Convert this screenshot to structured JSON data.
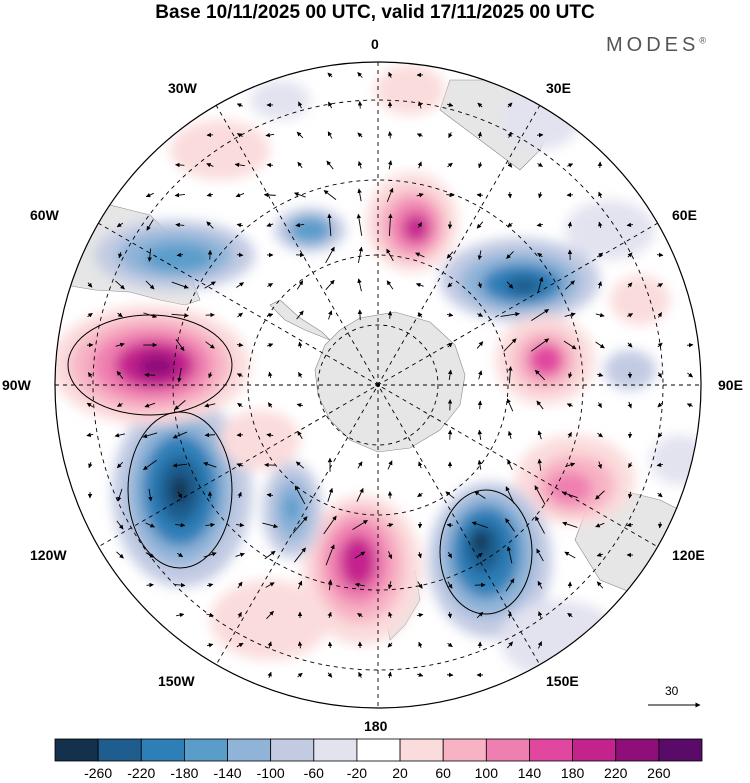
{
  "title": "Base 10/11/2025 00 UTC, valid 17/11/2025 00 UTC",
  "brand": "MODES",
  "brand_mark": "®",
  "longitude_labels": {
    "lon_0": "0",
    "lon_30e": "30E",
    "lon_60e": "60E",
    "lon_90e": "90E",
    "lon_120e": "120E",
    "lon_150e": "150E",
    "lon_180": "180",
    "lon_150w": "150W",
    "lon_120w": "120W",
    "lon_90w": "90W",
    "lon_60w": "60W",
    "lon_30w": "30W"
  },
  "reference_vector": {
    "label": "30"
  },
  "colorbar": {
    "labels": [
      "-260",
      "-220",
      "-180",
      "-140",
      "-100",
      "-60",
      "-20",
      "20",
      "60",
      "100",
      "140",
      "180",
      "220",
      "260"
    ],
    "colors": [
      "#13304c",
      "#1f5d8f",
      "#2e7fb8",
      "#5a9dcb",
      "#8fb4d8",
      "#c3cbe3",
      "#e3e3f0",
      "#ffffff",
      "#fbdcdc",
      "#f7b3c4",
      "#ef7fb0",
      "#e1479f",
      "#c4238e",
      "#8e0f79",
      "#5a0b6a"
    ]
  },
  "chart_data": {
    "type": "heatmap",
    "title": "Base 10/11/2025 00 UTC, valid 17/11/2025 00 UTC",
    "projection": "south polar stereographic",
    "field_range": [
      -260,
      260
    ],
    "anomaly_centers": [
      {
        "region": "south of South Africa (~5E)",
        "sign": "positive",
        "peak": 230
      },
      {
        "region": "~45E",
        "sign": "negative",
        "peak": -180
      },
      {
        "region": "~85E",
        "sign": "positive",
        "peak": 150
      },
      {
        "region": "south of Australia (~115E)",
        "sign": "positive",
        "peak": 120
      },
      {
        "region": "~150E near New Zealand",
        "sign": "negative",
        "peak": -240
      },
      {
        "region": "~170W",
        "sign": "positive",
        "peak": 240
      },
      {
        "region": "~140W",
        "sign": "negative",
        "peak": -130
      },
      {
        "region": "~110W",
        "sign": "negative",
        "peak": -250
      },
      {
        "region": "~80W off South America",
        "sign": "positive",
        "peak": 260
      },
      {
        "region": "~50W South Atlantic",
        "sign": "negative",
        "peak": -140
      },
      {
        "region": "~30W South Atlantic",
        "sign": "negative",
        "peak": -120
      }
    ]
  }
}
